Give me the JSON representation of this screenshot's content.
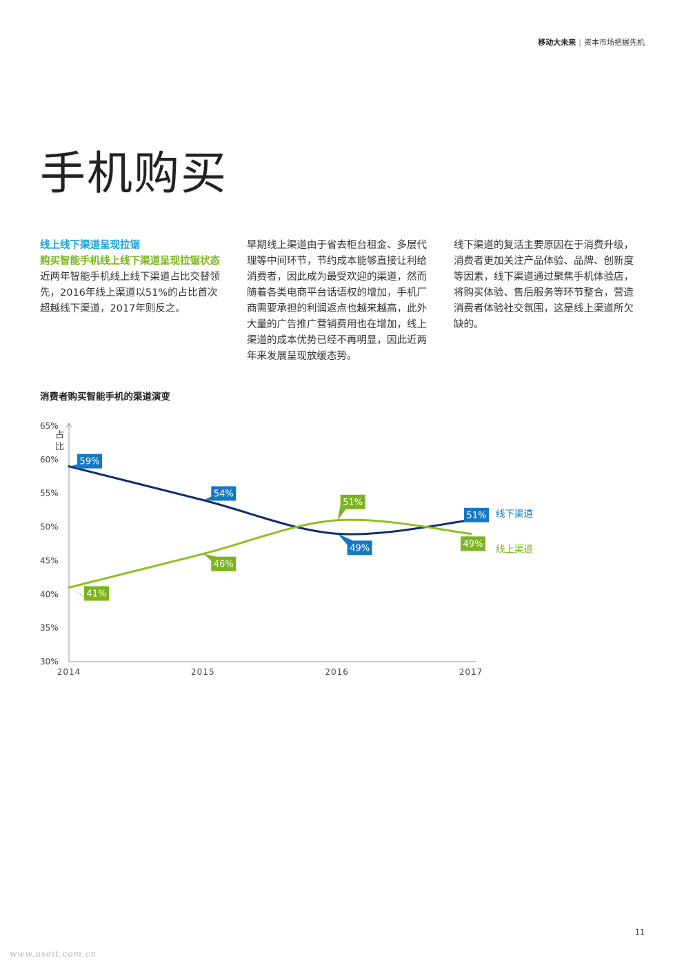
{
  "header": {
    "section": "移动大未来",
    "separator": "|",
    "subtitle": "资本市场把握先机"
  },
  "page_title": "手机购买",
  "col1": {
    "heading1": "线上线下渠道呈现拉锯",
    "heading2": "购买智能手机线上线下渠道呈现拉锯状态",
    "body": "近两年智能手机线上线下渠道占比交替领先，2016年线上渠道以51%的占比首次超越线下渠道，2017年则反之。"
  },
  "col2": {
    "body": "早期线上渠道由于省去柜台租金、多层代理等中间环节，节约成本能够直接让利给消费者，因此成为最受欢迎的渠道，然而随着各类电商平台话语权的增加，手机厂商需要承担的利润返点也越来越高，此外大量的广告推广营销费用也在增加，线上渠道的成本优势已经不再明显，因此近两年来发展呈现放缓态势。"
  },
  "col3": {
    "body": "线下渠道的复活主要原因在于消费升级，消费者更加关注产品体验、品牌、创新度等因素，线下渠道通过聚焦手机体验店，将购买体验、售后服务等环节整合，营造消费者体验社交氛围，这是线上渠道所欠缺的。"
  },
  "chart_title": "消费者购买智能手机的渠道演变",
  "chart_data": {
    "type": "line",
    "title": "消费者购买智能手机的渠道演变",
    "ylabel": "占比",
    "xlabel": "",
    "x": [
      "2014",
      "2015",
      "2016",
      "2017"
    ],
    "ylim": [
      30,
      65
    ],
    "yticks": [
      "30%",
      "35%",
      "40%",
      "45%",
      "50%",
      "55%",
      "60%",
      "65%"
    ],
    "grid": false,
    "legend_placement": "right",
    "series": [
      {
        "name": "线下渠道",
        "color": "#0f2d6b",
        "label_color": "#1479c2",
        "values": [
          59,
          54,
          49,
          51
        ],
        "labels": [
          "59%",
          "54%",
          "49%",
          "51%"
        ]
      },
      {
        "name": "线上渠道",
        "color": "#8cc21e",
        "label_color": "#7ab51d",
        "values": [
          41,
          46,
          51,
          49
        ],
        "labels": [
          "41%",
          "46%",
          "51%",
          "49%"
        ]
      }
    ]
  },
  "page_number": "11",
  "watermark": "www.useit.com.cn"
}
